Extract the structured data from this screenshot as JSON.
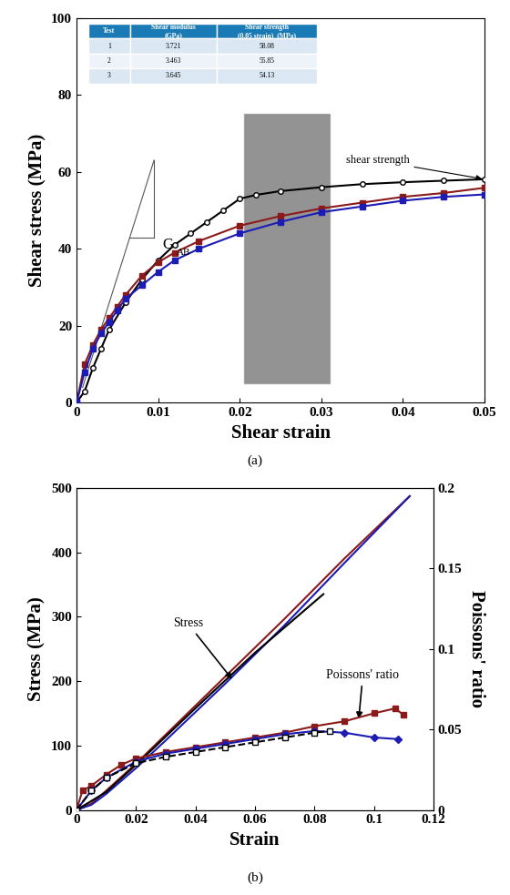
{
  "chart_data": [
    {
      "type": "line",
      "caption": "(a)",
      "x_label": "Shear strain",
      "y_label": "Shear stress (MPa)",
      "xlim": [
        0,
        0.05
      ],
      "xticks": [
        0,
        0.01,
        0.02,
        0.03,
        0.04,
        0.05
      ],
      "ylim": [
        0,
        100
      ],
      "yticks": [
        0,
        20,
        40,
        60,
        80,
        100
      ],
      "grid": false,
      "series": [
        {
          "color": "#000000",
          "marker": "open_circle",
          "line_style": "solid",
          "x": [
            0,
            0.001,
            0.002,
            0.003,
            0.004,
            0.006,
            0.008,
            0.01,
            0.012,
            0.014,
            0.016,
            0.018,
            0.02,
            0.022,
            0.025,
            0.03,
            0.035,
            0.04,
            0.045,
            0.05
          ],
          "values": [
            0,
            3,
            9,
            14,
            19,
            26,
            32,
            37,
            41,
            44,
            47,
            50,
            53,
            54,
            55,
            56,
            56.8,
            57.3,
            57.7,
            58.08
          ]
        },
        {
          "color": "#8b1a1a",
          "marker": "square",
          "line_style": "solid",
          "x": [
            0,
            0.001,
            0.002,
            0.003,
            0.004,
            0.005,
            0.006,
            0.008,
            0.01,
            0.012,
            0.015,
            0.02,
            0.025,
            0.03,
            0.035,
            0.04,
            0.045,
            0.05
          ],
          "values": [
            0,
            10,
            15,
            19,
            22,
            25,
            28,
            33,
            36.5,
            39,
            42,
            46,
            48.5,
            50.5,
            52,
            53.5,
            54.5,
            55.85
          ]
        },
        {
          "color": "#1c1cb4",
          "marker": "square",
          "line_style": "solid",
          "x": [
            0,
            0.001,
            0.002,
            0.003,
            0.004,
            0.005,
            0.006,
            0.008,
            0.01,
            0.012,
            0.015,
            0.02,
            0.025,
            0.03,
            0.035,
            0.04,
            0.045,
            0.05
          ],
          "values": [
            0,
            8,
            14,
            18,
            21,
            24,
            27,
            30.5,
            34,
            37,
            40,
            44,
            47,
            49.5,
            51,
            52.5,
            53.5,
            54.13
          ]
        }
      ],
      "annotations": [
        {
          "text": "shear strength"
        },
        {
          "text": "G",
          "subscript": "AB"
        }
      ],
      "table": {
        "columns": [
          "Test",
          "Shear modulus\n(GPa)",
          "Shear strength\n(0.05 strain)  (MPa)"
        ],
        "rows": [
          [
            1,
            3.721,
            58.08
          ],
          [
            2,
            3.463,
            55.85
          ],
          [
            3,
            3.645,
            54.13
          ]
        ]
      }
    },
    {
      "type": "line",
      "caption": "(b)",
      "x_label": "Strain",
      "y_label": "Stress (MPa)",
      "y2_label": "Poissons' ratio",
      "xlim": [
        0,
        0.12
      ],
      "xticks": [
        0,
        0.02,
        0.04,
        0.06,
        0.08,
        0.1,
        0.12
      ],
      "ylim": [
        0,
        500
      ],
      "yticks": [
        0,
        100,
        200,
        300,
        400,
        500
      ],
      "y2lim": [
        0,
        0.2
      ],
      "y2ticks": [
        0,
        0.05,
        0.1,
        0.15,
        0.2
      ],
      "grid": false,
      "series": [
        {
          "color": "#8b1a1a",
          "marker": "none",
          "line_style": "solid",
          "x": [
            0,
            0.005,
            0.01,
            0.02,
            0.03,
            0.05,
            0.07,
            0.09,
            0.112
          ],
          "values": [
            0,
            10,
            30,
            72,
            117,
            207,
            297,
            390,
            487
          ]
        },
        {
          "color": "#1c1cb4",
          "marker": "none",
          "line_style": "solid",
          "x": [
            0,
            0.005,
            0.01,
            0.02,
            0.03,
            0.05,
            0.07,
            0.09,
            0.112
          ],
          "values": [
            0,
            8,
            25,
            65,
            108,
            196,
            287,
            383,
            487
          ]
        },
        {
          "color": "#000000",
          "marker": "none",
          "line_style": "solid",
          "x": [
            0,
            0.01,
            0.02,
            0.04,
            0.06,
            0.083
          ],
          "values": [
            0,
            28,
            70,
            158,
            244,
            335
          ]
        },
        {
          "color": "#8b1a1a",
          "marker": "square",
          "line_style": "solid",
          "axis": "y2",
          "x": [
            0,
            0.002,
            0.005,
            0.01,
            0.015,
            0.02,
            0.03,
            0.04,
            0.05,
            0.06,
            0.07,
            0.08,
            0.09,
            0.1,
            0.107,
            0.11
          ],
          "values": [
            0,
            0.012,
            0.015,
            0.022,
            0.028,
            0.032,
            0.036,
            0.039,
            0.042,
            0.045,
            0.048,
            0.052,
            0.055,
            0.06,
            0.063,
            0.059
          ]
        },
        {
          "color": "#1c1cb4",
          "marker": "diamond",
          "line_style": "solid",
          "axis": "y2",
          "x": [
            0,
            0.005,
            0.01,
            0.02,
            0.03,
            0.04,
            0.05,
            0.06,
            0.07,
            0.08,
            0.09,
            0.1,
            0.108
          ],
          "values": [
            0,
            0.012,
            0.02,
            0.03,
            0.035,
            0.038,
            0.041,
            0.044,
            0.047,
            0.049,
            0.048,
            0.045,
            0.044
          ]
        },
        {
          "color": "#000000",
          "marker": "open_square",
          "line_style": "dashed",
          "axis": "y2",
          "x": [
            0,
            0.005,
            0.01,
            0.02,
            0.03,
            0.04,
            0.05,
            0.06,
            0.07,
            0.08,
            0.085
          ],
          "values": [
            0,
            0.012,
            0.02,
            0.029,
            0.033,
            0.036,
            0.039,
            0.042,
            0.045,
            0.048,
            0.049
          ]
        }
      ],
      "annotations": [
        {
          "text": "Stress"
        },
        {
          "text": "Poissons' ratio"
        }
      ]
    }
  ]
}
